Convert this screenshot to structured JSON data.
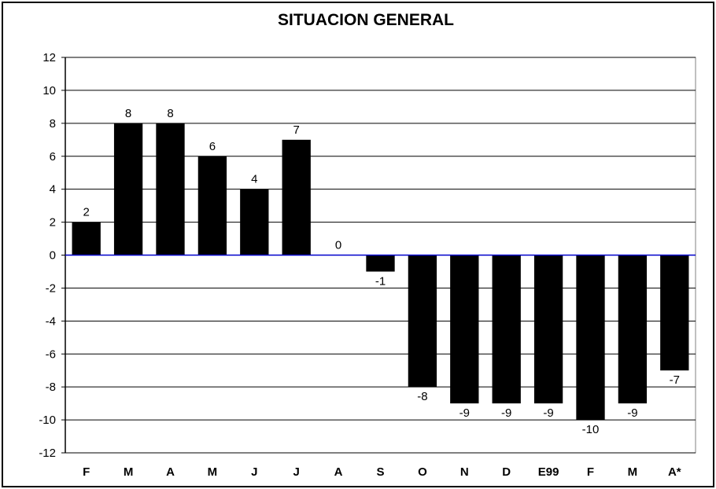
{
  "chart_data": {
    "type": "bar",
    "title": "SITUACION GENERAL",
    "xlabel": "",
    "ylabel": "",
    "ylim": [
      -12,
      12
    ],
    "yticks": [
      12,
      10,
      8,
      6,
      4,
      2,
      0,
      -2,
      -4,
      -6,
      -8,
      -10,
      -12
    ],
    "grid": true,
    "categories": [
      "F",
      "M",
      "A",
      "M",
      "J",
      "J",
      "A",
      "S",
      "O",
      "N",
      "D",
      "E99",
      "F",
      "M",
      "A*"
    ],
    "values": [
      2,
      8,
      8,
      6,
      4,
      7,
      0,
      -1,
      -8,
      -9,
      -9,
      -9,
      -10,
      -9,
      -7
    ],
    "bar_color": "#000000",
    "zero_line_color": "#0000cc"
  }
}
